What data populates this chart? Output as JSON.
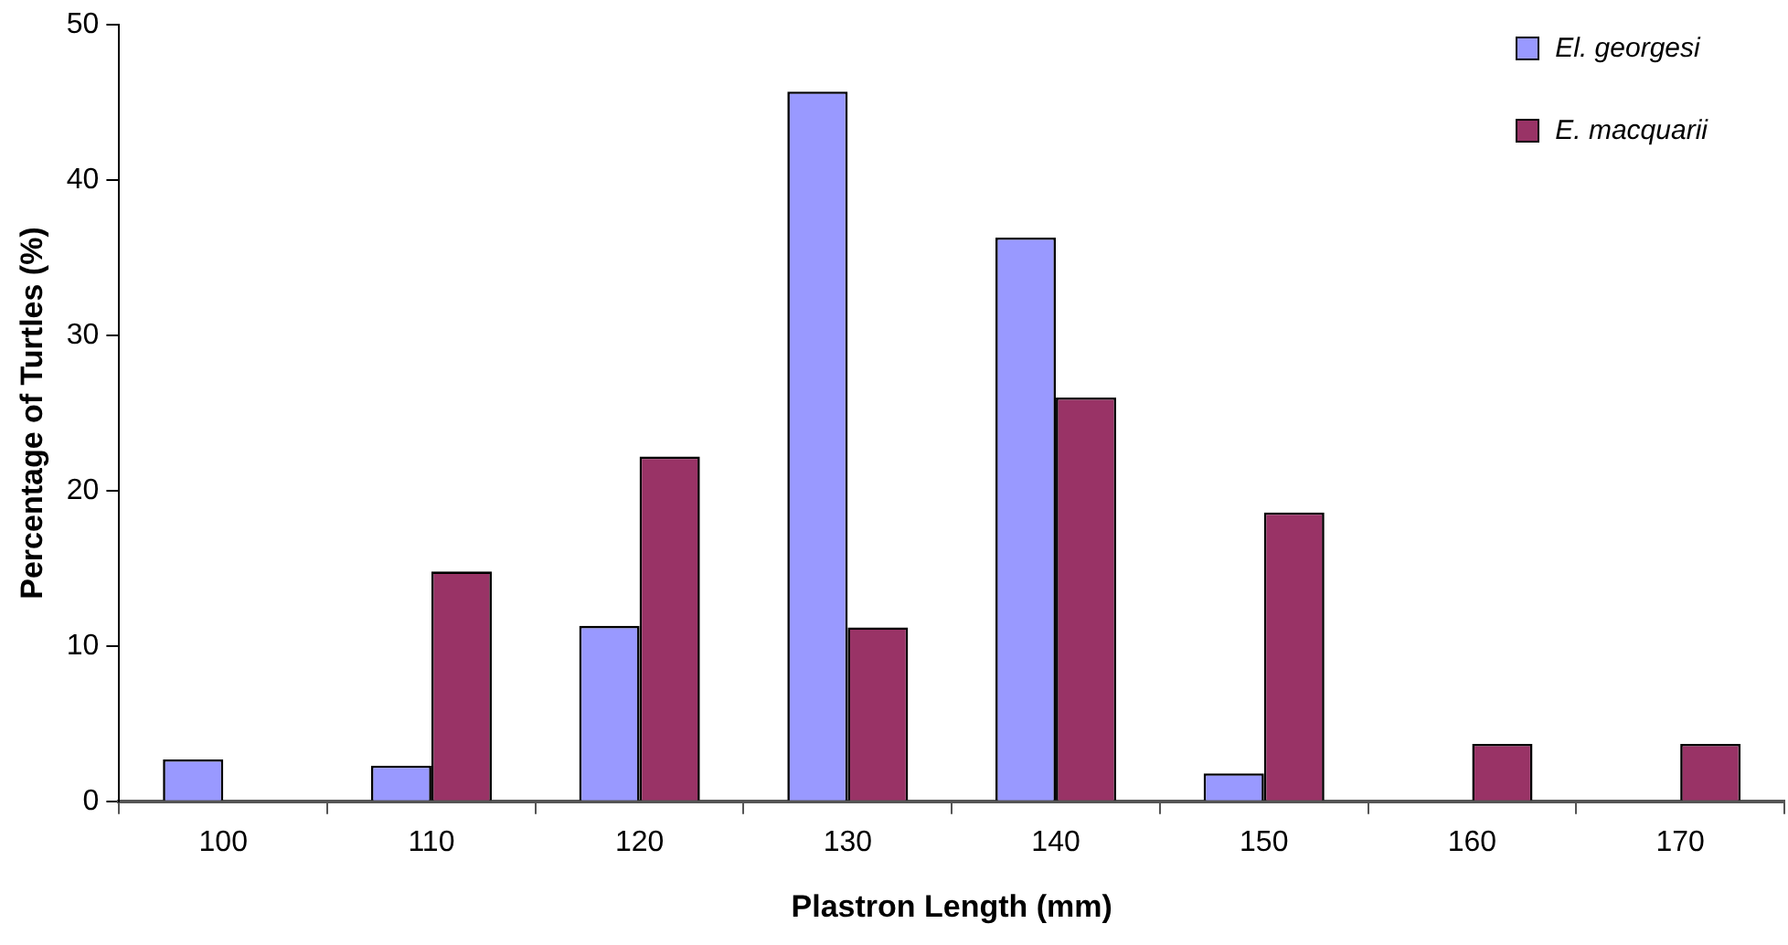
{
  "chart_data": {
    "type": "bar",
    "xlabel": "Plastron Length (mm)",
    "ylabel": "Percentage of Turtles (%)",
    "categories": [
      "100",
      "110",
      "120",
      "130",
      "140",
      "150",
      "160",
      "170"
    ],
    "series": [
      {
        "name": "El. georgesi",
        "color": "#9999ff",
        "values": [
          2.7,
          2.3,
          11.3,
          45.7,
          36.3,
          1.8,
          null,
          null
        ]
      },
      {
        "name": "E. macquarii",
        "color": "#993366",
        "values": [
          null,
          14.8,
          22.2,
          11.2,
          26.0,
          18.6,
          3.7,
          3.7
        ]
      }
    ],
    "ylim": [
      0,
      50
    ],
    "yticks": [
      0,
      10,
      20,
      30,
      40,
      50
    ],
    "grid": false,
    "legend": "top right"
  }
}
